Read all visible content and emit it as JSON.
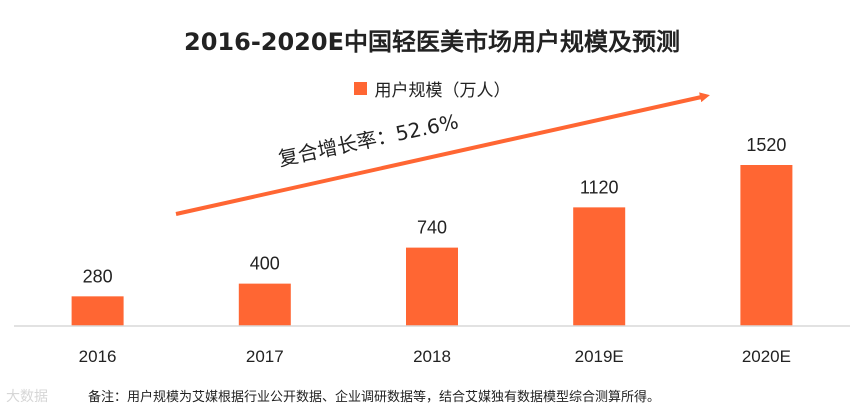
{
  "chart_data": {
    "type": "bar",
    "title": "2016-2020E中国轻医美市场用户规模及预测",
    "categories": [
      "2016",
      "2017",
      "2018",
      "2019E",
      "2020E"
    ],
    "series": [
      {
        "name": "用户规模（万人）",
        "values": [
          280,
          400,
          740,
          1120,
          1520
        ]
      }
    ],
    "data_labels": [
      "280",
      "400",
      "740",
      "1120",
      "1520"
    ],
    "ylim": [
      0,
      1520
    ],
    "grid": false,
    "legend_position": "top-center",
    "annotation": "复合增长率：52.6%"
  },
  "colors": {
    "bar": "#FF6633",
    "arrow": "#FF6633",
    "axis": "#d9d9d9"
  },
  "footnote": "备注：用户规模为艾媒根据行业公开数据、企业调研数据等，结合艾媒独有数据模型综合测算所得。",
  "watermark": "大数据"
}
